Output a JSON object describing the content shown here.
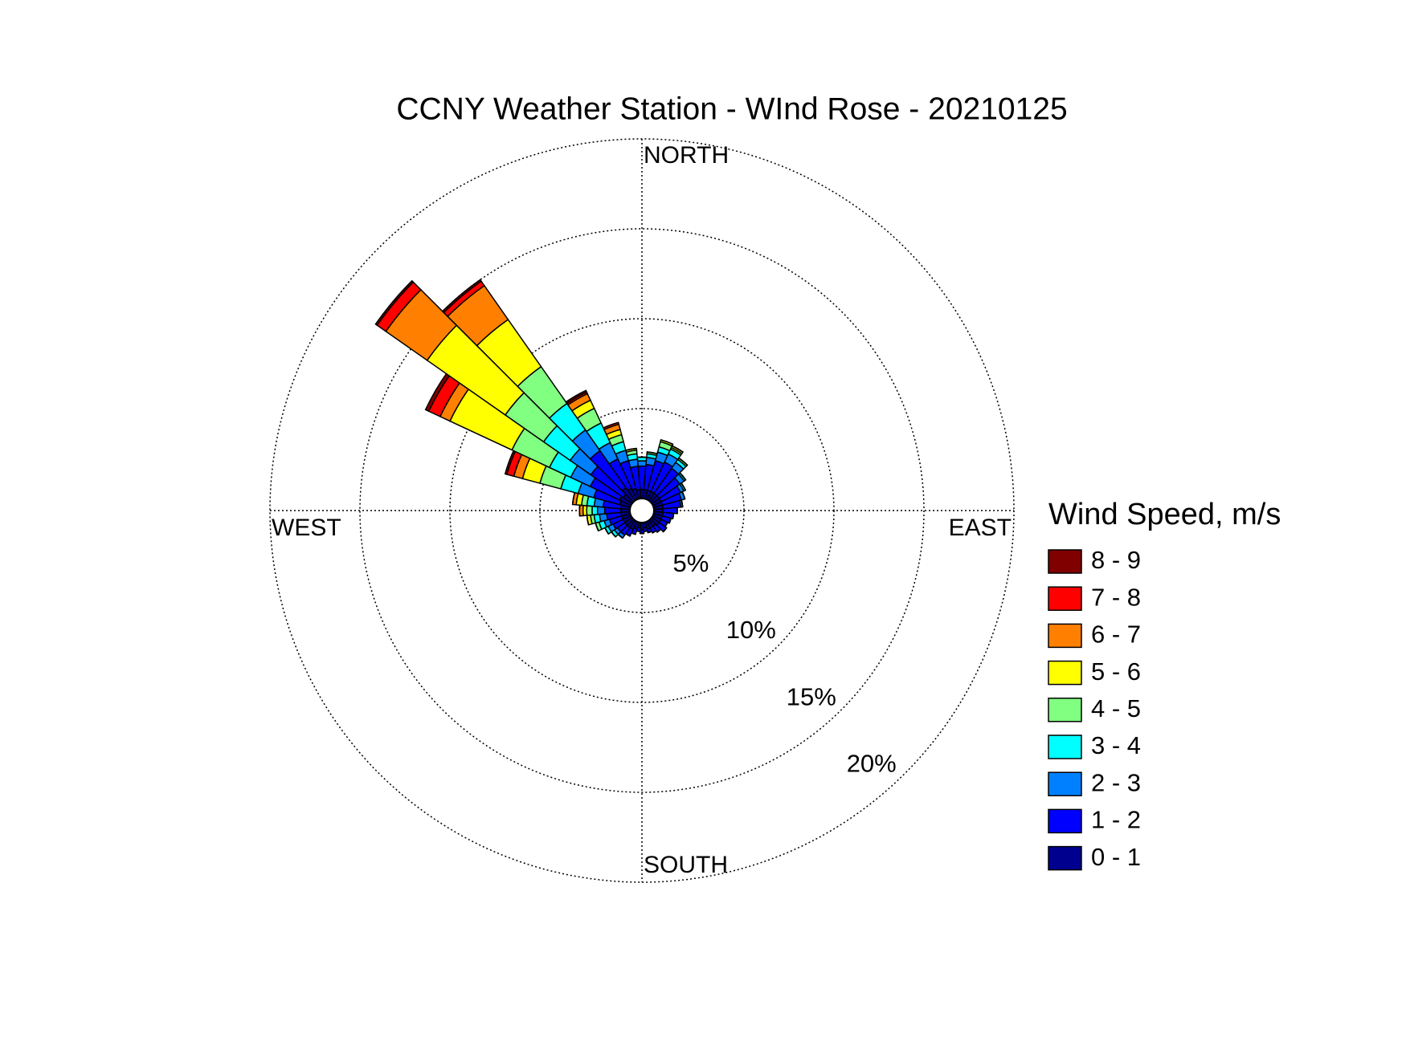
{
  "chart_data": {
    "type": "wind_rose",
    "title": "CCNY Weather Station - WInd Rose - 20210125",
    "direction_labels": [
      "NORTH",
      "EAST",
      "SOUTH",
      "WEST"
    ],
    "legend_title": "Wind Speed, m/s",
    "x": [
      0,
      10,
      20,
      30,
      40,
      50,
      60,
      70,
      80,
      90,
      100,
      110,
      120,
      130,
      140,
      150,
      160,
      170,
      180,
      190,
      200,
      210,
      220,
      230,
      240,
      250,
      260,
      270,
      280,
      290,
      300,
      310,
      320,
      330,
      340,
      350
    ],
    "rlim": [
      0,
      20
    ],
    "rticks": [
      {
        "value": 5,
        "label": "5%"
      },
      {
        "value": 10,
        "label": "10%"
      },
      {
        "value": 15,
        "label": "15%"
      },
      {
        "value": 20,
        "label": "20%"
      }
    ],
    "grid": true,
    "series": [
      {
        "name": "0 - 1",
        "color": "#00008f",
        "values": [
          0.5,
          0.5,
          0.5,
          0.5,
          0.5,
          0.5,
          0.5,
          0.5,
          0.5,
          0.5,
          0.5,
          0.5,
          0.5,
          0.5,
          0.4,
          0.4,
          0.4,
          0.3,
          0.4,
          0.3,
          0.4,
          0.5,
          0.5,
          0.5,
          0.5,
          0.5,
          0.5,
          0.5,
          0.5,
          0.6,
          0.7,
          0.6,
          0.9,
          0.7,
          0.6,
          0.5
        ]
      },
      {
        "name": "1 - 2",
        "color": "#0000ff",
        "values": [
          1.3,
          1.4,
          1.7,
          1.8,
          1.7,
          1.4,
          1.2,
          1.1,
          1.0,
          0.8,
          0.6,
          0.5,
          0.4,
          0.5,
          0.4,
          0.3,
          0.2,
          0.2,
          0.2,
          0.2,
          0.3,
          0.4,
          0.5,
          0.5,
          0.6,
          0.7,
          0.8,
          0.9,
          1.0,
          1.5,
          1.8,
          2.2,
          2.5,
          1.8,
          1.6,
          1.3
        ]
      },
      {
        "name": "2 - 3",
        "color": "#0080ff",
        "values": [
          0.3,
          0.4,
          0.5,
          0.5,
          0.4,
          0.3,
          0.2,
          0.2,
          0.1,
          0,
          0,
          0,
          0,
          0,
          0,
          0,
          0,
          0,
          0,
          0,
          0,
          0,
          0.2,
          0.2,
          0.3,
          0.3,
          0.4,
          0.4,
          0.5,
          0.9,
          1.2,
          1.4,
          1.4,
          1.0,
          0.6,
          0.4
        ]
      },
      {
        "name": "3 - 4",
        "color": "#00ffff",
        "values": [
          0.2,
          0.2,
          0.3,
          0.3,
          0.2,
          0.1,
          0.1,
          0,
          0,
          0,
          0,
          0,
          0,
          0,
          0,
          0,
          0,
          0,
          0,
          0,
          0,
          0,
          0,
          0.2,
          0.2,
          0.3,
          0.3,
          0.3,
          0.4,
          1.0,
          1.3,
          1.8,
          1.8,
          1.2,
          0.5,
          0.3
        ]
      },
      {
        "name": "4 - 5",
        "color": "#80ff80",
        "values": [
          0,
          0.1,
          0.3,
          0.1,
          0.1,
          0,
          0,
          0,
          0,
          0,
          0,
          0,
          0,
          0,
          0,
          0,
          0,
          0,
          0,
          0,
          0,
          0,
          0,
          0,
          0,
          0.2,
          0.2,
          0.3,
          0.3,
          1.2,
          2.3,
          2.6,
          2.5,
          0.9,
          0.4,
          0.2
        ]
      },
      {
        "name": "5 - 6",
        "color": "#ffff00",
        "values": [
          0,
          0,
          0.1,
          0.1,
          0,
          0,
          0,
          0,
          0,
          0,
          0,
          0,
          0,
          0,
          0,
          0,
          0,
          0,
          0,
          0,
          0,
          0,
          0,
          0,
          0,
          0,
          0.2,
          0.2,
          0.3,
          1.0,
          3.8,
          5.3,
          3.2,
          0.5,
          0.3,
          0.1
        ]
      },
      {
        "name": "6 - 7",
        "color": "#ff8000",
        "values": [
          0,
          0,
          0,
          0,
          0,
          0,
          0,
          0,
          0,
          0,
          0,
          0,
          0,
          0,
          0,
          0,
          0,
          0,
          0,
          0,
          0,
          0,
          0,
          0,
          0,
          0,
          0,
          0.2,
          0.2,
          0.5,
          0.6,
          2.8,
          2.3,
          0.4,
          0.3,
          0
        ]
      },
      {
        "name": "7 - 8",
        "color": "#ff0000",
        "values": [
          0,
          0,
          0,
          0,
          0,
          0,
          0,
          0,
          0,
          0,
          0,
          0,
          0,
          0,
          0,
          0,
          0,
          0,
          0,
          0,
          0,
          0,
          0,
          0,
          0,
          0,
          0,
          0,
          0,
          0.4,
          0.7,
          0.6,
          0.3,
          0.1,
          0.1,
          0
        ]
      },
      {
        "name": "8 - 9",
        "color": "#800000",
        "values": [
          0,
          0,
          0,
          0,
          0,
          0,
          0,
          0,
          0,
          0,
          0,
          0,
          0,
          0,
          0,
          0,
          0,
          0,
          0,
          0,
          0,
          0,
          0,
          0,
          0,
          0,
          0,
          0,
          0,
          0.1,
          0.2,
          0.1,
          0.1,
          0.1,
          0,
          0
        ]
      }
    ]
  }
}
